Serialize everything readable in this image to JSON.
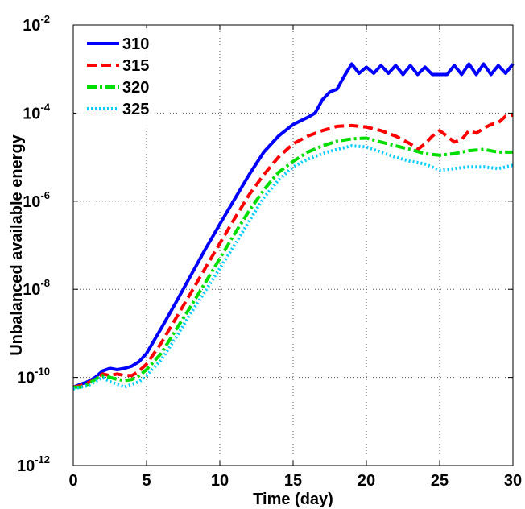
{
  "chart_data": {
    "type": "line",
    "y_scale": "log",
    "xlabel": "Time (day)",
    "ylabel": "Unbalanced available energy",
    "xlim": [
      0,
      30
    ],
    "ylim": [
      1e-12,
      0.01
    ],
    "x_ticks": [
      {
        "value": 0,
        "label": "0"
      },
      {
        "value": 5,
        "label": "5"
      },
      {
        "value": 10,
        "label": "10"
      },
      {
        "value": 15,
        "label": "15"
      },
      {
        "value": 20,
        "label": "20"
      },
      {
        "value": 25,
        "label": "25"
      },
      {
        "value": 30,
        "label": "30"
      }
    ],
    "y_ticks": [
      {
        "value": 1e-12,
        "base": "10",
        "exp": "-12"
      },
      {
        "value": 1e-10,
        "base": "10",
        "exp": "-10"
      },
      {
        "value": 1e-08,
        "base": "10",
        "exp": "-8"
      },
      {
        "value": 1e-06,
        "base": "10",
        "exp": "-6"
      },
      {
        "value": 0.0001,
        "base": "10",
        "exp": "-4"
      },
      {
        "value": 0.01,
        "base": "10",
        "exp": "-2"
      }
    ],
    "grid": true,
    "legend_position": "top-left",
    "series": [
      {
        "name": "310",
        "color": "#0000ff",
        "line_style": "solid",
        "x": [
          0,
          0.5,
          1,
          1.5,
          2,
          2.5,
          3,
          3.5,
          4,
          4.5,
          5,
          6,
          7,
          8,
          9,
          10,
          11,
          12,
          13,
          14,
          15,
          16,
          16.5,
          17,
          17.5,
          18,
          18.5,
          19,
          19.5,
          20,
          20.5,
          21,
          21.5,
          22,
          22.5,
          23,
          23.5,
          24,
          24.5,
          25,
          25.5,
          26,
          26.5,
          27,
          27.5,
          28,
          28.5,
          29,
          29.5,
          30
        ],
        "y": [
          6e-11,
          7e-11,
          8e-11,
          1e-10,
          1.4e-10,
          1.6e-10,
          1.5e-10,
          1.6e-10,
          1.8e-10,
          2.3e-10,
          3.5e-10,
          1.3e-09,
          5e-09,
          2e-08,
          8e-08,
          3e-07,
          1.1e-06,
          4e-06,
          1.3e-05,
          3e-05,
          5.5e-05,
          8e-05,
          0.0001,
          0.0002,
          0.0003,
          0.00035,
          0.0007,
          0.0013,
          0.0008,
          0.0011,
          0.0008,
          0.0012,
          0.0008,
          0.0012,
          0.00075,
          0.0012,
          0.00075,
          0.0011,
          0.00075,
          0.00075,
          0.00075,
          0.0012,
          0.00075,
          0.0013,
          0.00075,
          0.0013,
          0.00075,
          0.0012,
          0.0008,
          0.0013
        ]
      },
      {
        "name": "315",
        "color": "#ff0000",
        "line_style": "dashed",
        "x": [
          0,
          0.5,
          1,
          1.5,
          2,
          2.5,
          3,
          3.5,
          4,
          4.5,
          5,
          6,
          7,
          8,
          9,
          10,
          11,
          12,
          13,
          14,
          15,
          16,
          17,
          18,
          19,
          20,
          21,
          22,
          23,
          23.5,
          24,
          24.5,
          25,
          25.5,
          26,
          26.5,
          27,
          27.5,
          28,
          28.5,
          29,
          29.5,
          30
        ],
        "y": [
          6e-11,
          6.5e-11,
          7.5e-11,
          9e-11,
          1.2e-10,
          1.1e-10,
          1.2e-10,
          1.1e-10,
          1.1e-10,
          1.4e-10,
          2e-10,
          6e-10,
          2.2e-09,
          8e-09,
          3e-08,
          1.1e-07,
          4e-07,
          1.4e-06,
          4e-06,
          1e-05,
          2e-05,
          3e-05,
          4e-05,
          5e-05,
          5.2e-05,
          4.8e-05,
          4e-05,
          3e-05,
          2e-05,
          1.5e-05,
          2e-05,
          3e-05,
          4e-05,
          3e-05,
          2.2e-05,
          2.5e-05,
          4e-05,
          3.5e-05,
          4.5e-05,
          5.5e-05,
          6e-05,
          8.5e-05,
          9e-05
        ]
      },
      {
        "name": "320",
        "color": "#00dd00",
        "line_style": "dashdot",
        "x": [
          0,
          0.5,
          1,
          1.5,
          2,
          2.5,
          3,
          3.5,
          4,
          4.5,
          5,
          6,
          7,
          8,
          9,
          10,
          11,
          12,
          13,
          14,
          15,
          16,
          17,
          18,
          19,
          20,
          21,
          22,
          23,
          24,
          25,
          26,
          27,
          28,
          29,
          30
        ],
        "y": [
          6e-11,
          6e-11,
          7e-11,
          9e-11,
          1.1e-10,
          1e-10,
          9e-11,
          8.5e-11,
          9e-11,
          1.1e-10,
          1.5e-10,
          3.5e-10,
          1.2e-09,
          4e-09,
          1.4e-08,
          5e-08,
          1.8e-07,
          6e-07,
          1.8e-06,
          4.5e-06,
          8e-06,
          1.3e-05,
          1.8e-05,
          2.3e-05,
          2.6e-05,
          2.7e-05,
          2.2e-05,
          1.8e-05,
          1.5e-05,
          1.2e-05,
          1.1e-05,
          1.2e-05,
          1.4e-05,
          1.5e-05,
          1.3e-05,
          1.3e-05
        ]
      },
      {
        "name": "325",
        "color": "#00ccff",
        "line_style": "dotted",
        "x": [
          0,
          0.5,
          1,
          1.5,
          2,
          2.5,
          3,
          3.5,
          4,
          4.5,
          5,
          6,
          7,
          8,
          9,
          10,
          11,
          12,
          13,
          14,
          15,
          16,
          17,
          18,
          19,
          20,
          21,
          22,
          23,
          24,
          25,
          26,
          27,
          28,
          29,
          30
        ],
        "y": [
          5.5e-11,
          6e-11,
          6.5e-11,
          8e-11,
          1e-10,
          8e-11,
          7e-11,
          6e-11,
          7e-11,
          8e-11,
          1.1e-10,
          2.5e-10,
          8e-10,
          2.8e-09,
          9e-09,
          3e-08,
          1e-07,
          3.5e-07,
          1.2e-06,
          3e-06,
          6e-06,
          9e-06,
          1.2e-05,
          1.5e-05,
          1.8e-05,
          1.7e-05,
          1.3e-05,
          1e-05,
          8e-06,
          7e-06,
          5e-06,
          5.5e-06,
          6e-06,
          6e-06,
          5.5e-06,
          6.5e-06
        ]
      }
    ]
  }
}
